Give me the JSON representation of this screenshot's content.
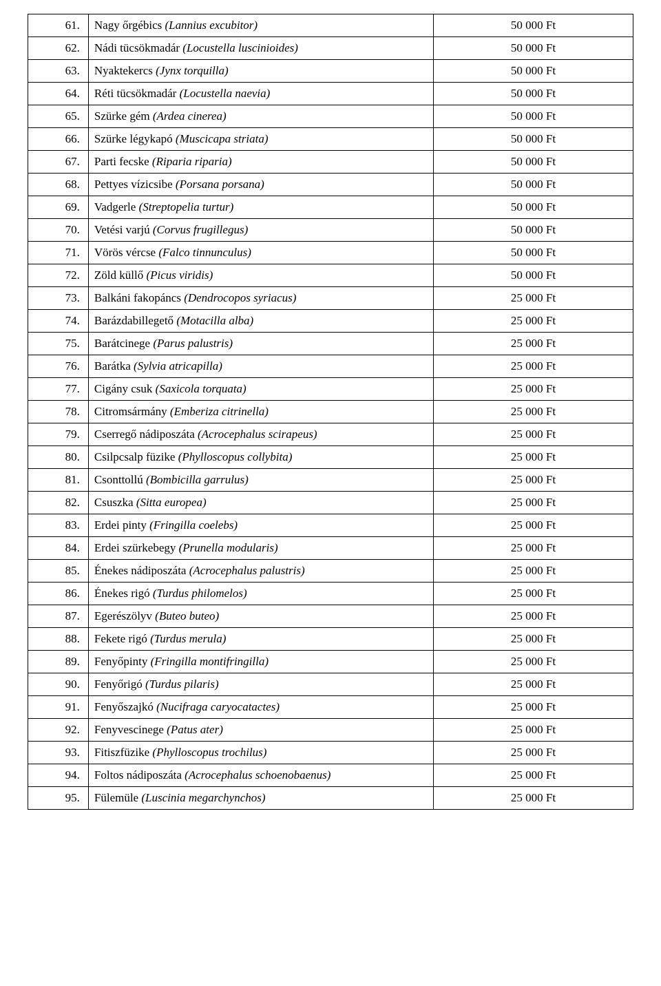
{
  "table": {
    "columns": [
      "num",
      "name",
      "price"
    ],
    "col_widths_pct": [
      10,
      57,
      33
    ],
    "border_color": "#000000",
    "background_color": "#ffffff",
    "text_color": "#000000",
    "font_family": "Times New Roman",
    "font_size_pt": 13,
    "rows": [
      {
        "num": "61.",
        "common": "Nagy őrgébics ",
        "latin": "(Lannius excubitor)",
        "price": "50 000 Ft"
      },
      {
        "num": "62.",
        "common": "Nádi tücsökmadár ",
        "latin": "(Locustella luscinioides)",
        "price": "50 000 Ft"
      },
      {
        "num": "63.",
        "common": "Nyaktekercs ",
        "latin": "(Jynx torquilla)",
        "price": "50 000 Ft"
      },
      {
        "num": "64.",
        "common": "Réti tücsökmadár ",
        "latin": "(Locustella naevia)",
        "price": "50 000 Ft"
      },
      {
        "num": "65.",
        "common": "Szürke gém ",
        "latin": "(Ardea cinerea)",
        "price": "50 000 Ft"
      },
      {
        "num": "66.",
        "common": "Szürke légykapó ",
        "latin": "(Muscicapa striata)",
        "price": "50 000 Ft"
      },
      {
        "num": "67.",
        "common": "Parti fecske ",
        "latin": "(Riparia riparia)",
        "price": "50 000 Ft"
      },
      {
        "num": "68.",
        "common": "Pettyes vízicsibe ",
        "latin": "(Porsana porsana)",
        "price": "50 000 Ft"
      },
      {
        "num": "69.",
        "common": "Vadgerle ",
        "latin": "(Streptopelia turtur)",
        "price": "50 000 Ft"
      },
      {
        "num": "70.",
        "common": "Vetési varjú ",
        "latin": "(Corvus frugillegus)",
        "price": "50 000 Ft"
      },
      {
        "num": "71.",
        "common": "Vörös vércse ",
        "latin": "(Falco tinnunculus)",
        "price": "50 000 Ft"
      },
      {
        "num": "72.",
        "common": "Zöld küllő ",
        "latin": "(Picus viridis)",
        "price": "50 000 Ft"
      },
      {
        "num": "73.",
        "common": "Balkáni fakopáncs ",
        "latin": "(Dendrocopos syriacus)",
        "price": "25 000 Ft"
      },
      {
        "num": "74.",
        "common": "Barázdabillegető ",
        "latin": "(Motacilla alba)",
        "price": "25 000 Ft"
      },
      {
        "num": "75.",
        "common": "Barátcinege ",
        "latin": "(Parus palustris)",
        "price": "25 000 Ft"
      },
      {
        "num": "76.",
        "common": "Barátka ",
        "latin": "(Sylvia atricapilla)",
        "price": "25 000 Ft"
      },
      {
        "num": "77.",
        "common": "Cigány csuk ",
        "latin": "(Saxicola torquata)",
        "price": "25 000 Ft"
      },
      {
        "num": "78.",
        "common": "Citromsármány ",
        "latin": "(Emberiza citrinella)",
        "price": "25 000 Ft"
      },
      {
        "num": "79.",
        "common": "Cserregő nádiposzáta ",
        "latin": "(Acrocephalus scirapeus)",
        "price": "25 000 Ft"
      },
      {
        "num": "80.",
        "common": "Csilpcsalp füzike ",
        "latin": "(Phylloscopus collybita)",
        "price": "25 000 Ft"
      },
      {
        "num": "81.",
        "common": "Csonttollú ",
        "latin": "(Bombicilla garrulus)",
        "price": "25 000 Ft"
      },
      {
        "num": "82.",
        "common": "Csuszka ",
        "latin": "(Sitta europea)",
        "price": "25 000 Ft"
      },
      {
        "num": "83.",
        "common": "Erdei pinty ",
        "latin": "(Fringilla coelebs)",
        "price": "25 000 Ft"
      },
      {
        "num": "84.",
        "common": "Erdei szürkebegy ",
        "latin": "(Prunella modularis)",
        "price": "25 000 Ft"
      },
      {
        "num": "85.",
        "common": "Énekes nádiposzáta ",
        "latin": "(Acrocephalus palustris)",
        "price": "25 000 Ft"
      },
      {
        "num": "86.",
        "common": "Énekes rigó ",
        "latin": "(Turdus philomelos)",
        "price": "25 000 Ft"
      },
      {
        "num": "87.",
        "common": "Egerészölyv ",
        "latin": "(Buteo buteo)",
        "price": "25 000 Ft"
      },
      {
        "num": "88.",
        "common": "Fekete rigó ",
        "latin": "(Turdus merula)",
        "price": "25 000 Ft"
      },
      {
        "num": "89.",
        "common": "Fenyőpinty ",
        "latin": "(Fringilla montifringilla)",
        "price": "25 000 Ft"
      },
      {
        "num": "90.",
        "common": "Fenyőrigó ",
        "latin": "(Turdus pilaris)",
        "price": "25 000 Ft"
      },
      {
        "num": "91.",
        "common": "Fenyőszajkó ",
        "latin": "(Nucifraga caryocatactes)",
        "price": "25 000 Ft"
      },
      {
        "num": "92.",
        "common": "Fenyvescinege ",
        "latin": "(Patus ater)",
        "price": "25 000 Ft"
      },
      {
        "num": "93.",
        "common": "Fitiszfüzike ",
        "latin": "(Phylloscopus trochilus)",
        "price": "25 000 Ft"
      },
      {
        "num": "94.",
        "common": "Foltos nádiposzáta ",
        "latin": "(Acrocephalus schoenobaenus)",
        "price": "25 000 Ft"
      },
      {
        "num": "95.",
        "common": "Fülemüle ",
        "latin": "(Luscinia megarchynchos)",
        "price": "25 000 Ft"
      }
    ]
  }
}
